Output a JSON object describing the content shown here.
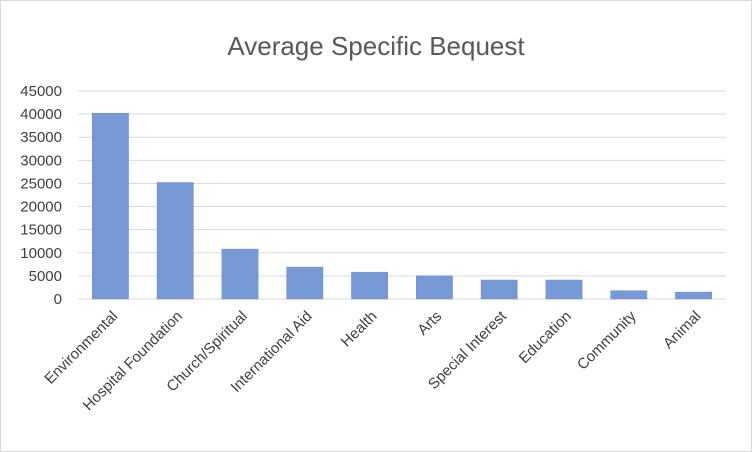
{
  "chart_data": {
    "type": "bar",
    "title": "Average Specific Bequest",
    "xlabel": "",
    "ylabel": "",
    "categories": [
      "Environmental",
      "Hospital Foundation",
      "Church/Spiritual",
      "International Aid",
      "Health",
      "Arts",
      "Special Interest",
      "Education",
      "Community",
      "Animal"
    ],
    "values": [
      40200,
      25200,
      10800,
      6900,
      5800,
      5000,
      4100,
      4100,
      1800,
      1500
    ],
    "ylim": [
      0,
      45000
    ],
    "yticks": [
      "0",
      "5000",
      "10000",
      "15000",
      "20000",
      "25000",
      "30000",
      "35000",
      "40000",
      "45000"
    ],
    "grid": true,
    "legend": "none",
    "colors": {
      "bar": "#7799d6",
      "grid": "#d9d9d9",
      "text": "#404040",
      "title": "#595959"
    }
  }
}
